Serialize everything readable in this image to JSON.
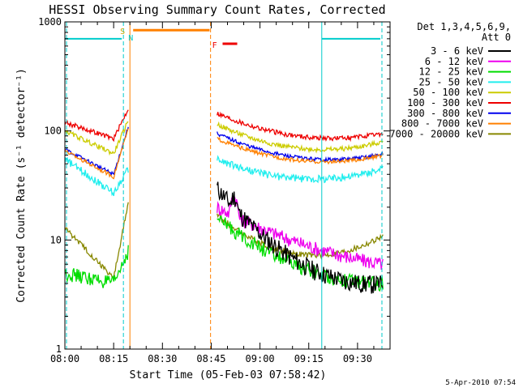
{
  "chart_data": {
    "type": "line",
    "title": "HESSI Observing Summary Count Rates, Corrected",
    "xlabel": "Start Time (05-Feb-03 07:58:42)",
    "ylabel": "Corrected Count Rate (s⁻¹ detector⁻¹)",
    "yscale": "log",
    "xlim_minutes": [
      0,
      100
    ],
    "ylim": [
      1,
      1000
    ],
    "x_tick_labels": [
      "08:00",
      "08:15",
      "08:30",
      "08:45",
      "09:00",
      "09:15",
      "09:30"
    ],
    "x_tick_minutes": [
      0,
      15,
      30,
      45,
      60,
      75,
      90
    ],
    "y_tick_labels": [
      "1",
      "10",
      "100",
      "1000"
    ],
    "y_tick_values": [
      1,
      10,
      100,
      1000
    ],
    "legend_title": [
      "Det 1,3,4,5,6,9,",
      "Att 0"
    ],
    "legend_position": "right",
    "date_stamp": "5-Apr-2010 07:54",
    "markers": {
      "saa": {
        "label": "S",
        "color": "#ccaa00"
      },
      "night": {
        "label": "N",
        "color": "#00cccc"
      },
      "flare": {
        "label": "F",
        "color": "#ee0000"
      }
    },
    "series": [
      {
        "name": "3 - 6 keV",
        "color": "#000000"
      },
      {
        "name": "6 - 12 keV",
        "color": "#ee00ee"
      },
      {
        "name": "12 - 25 keV",
        "color": "#00dd00"
      },
      {
        "name": "25 - 50 keV",
        "color": "#22eeee"
      },
      {
        "name": "50 - 100 keV",
        "color": "#cccc00"
      },
      {
        "name": "100 - 300 keV",
        "color": "#ee0000"
      },
      {
        "name": "300 - 800 keV",
        "color": "#0000ee"
      },
      {
        "name": "800 - 7000 keV",
        "color": "#ff8000"
      },
      {
        "name": "7000 - 20000 keV",
        "color": "#888800"
      }
    ]
  }
}
